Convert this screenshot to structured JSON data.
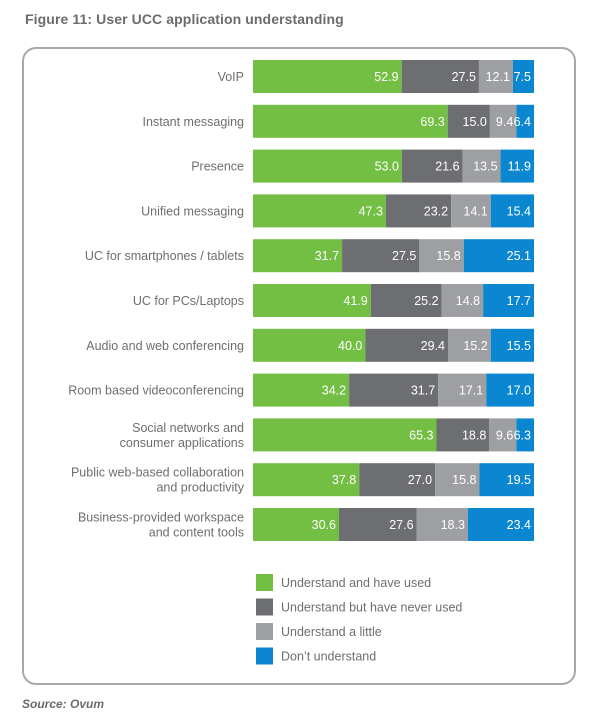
{
  "figure": {
    "title": "Figure 11: User UCC application understanding",
    "source": "Source: Ovum"
  },
  "chart_data": {
    "type": "bar",
    "orientation": "horizontal",
    "stacked": true,
    "title": "Figure 11: User UCC application understanding",
    "xlabel": "",
    "ylabel": "",
    "xlim": [
      0,
      100
    ],
    "grid": false,
    "legend_position": "bottom",
    "categories": [
      [
        "VoIP"
      ],
      [
        "Instant messaging"
      ],
      [
        "Presence"
      ],
      [
        "Unified messaging"
      ],
      [
        "UC for smartphones / tablets"
      ],
      [
        "UC for PCs/Laptops"
      ],
      [
        "Audio and web conferencing"
      ],
      [
        "Room based videoconferencing"
      ],
      [
        "Social networks and",
        "consumer applications"
      ],
      [
        "Public web-based collaboration",
        "and productivity"
      ],
      [
        "Business-provided workspace",
        "and content tools"
      ]
    ],
    "series": [
      {
        "name": "Understand and have used",
        "color": "#72bf44",
        "values": [
          52.9,
          69.3,
          53.0,
          47.3,
          31.7,
          41.9,
          40.0,
          34.2,
          65.3,
          37.8,
          30.6
        ]
      },
      {
        "name": "Understand but have never used",
        "color": "#6d6e71",
        "values": [
          27.5,
          15.0,
          21.6,
          23.2,
          27.5,
          25.2,
          29.4,
          31.7,
          18.8,
          27.0,
          27.6
        ]
      },
      {
        "name": "Understand a little",
        "color": "#9d9fa2",
        "values": [
          12.1,
          9.4,
          13.5,
          14.1,
          15.8,
          14.8,
          15.2,
          17.1,
          9.6,
          15.8,
          18.3
        ]
      },
      {
        "name": "Don’t understand",
        "color": "#0a87d0",
        "values": [
          7.5,
          6.4,
          11.9,
          15.4,
          25.1,
          17.7,
          15.5,
          17.0,
          6.3,
          19.5,
          23.4
        ]
      }
    ]
  }
}
